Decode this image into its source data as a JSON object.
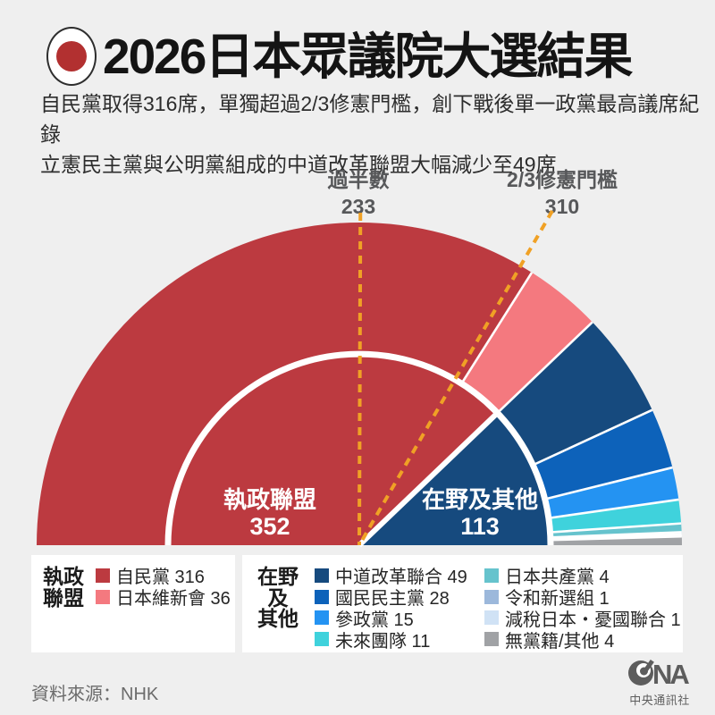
{
  "header": {
    "title": "2026日本眾議院大選結果",
    "flag_icon": "japan-flag-icon",
    "subtitle_line1": "自民黨取得316席，單獨超過2/3修憲門檻，創下戰後單一政黨最高議席紀錄",
    "subtitle_line2": "立憲民主黨與公明黨組成的中道改革聯盟大幅減少至49席"
  },
  "chart_data": {
    "type": "parliament-semicircle",
    "total_seats": 465,
    "annotations": [
      {
        "label": "過半數",
        "value": 233
      },
      {
        "label": "2/3修憲門檻",
        "value": 310
      }
    ],
    "annotation_line_color": "#F0A125",
    "coalitions": [
      {
        "name": "執政聯盟",
        "seats": 352,
        "color": "#BC3A40"
      },
      {
        "name": "在野及其他",
        "seats": 113,
        "color": "#164A7E"
      }
    ],
    "parties": [
      {
        "name": "自民黨",
        "seats": 316,
        "color": "#BC3A40",
        "coalition": "執政聯盟"
      },
      {
        "name": "日本維新會",
        "seats": 36,
        "color": "#F4797F",
        "coalition": "執政聯盟"
      },
      {
        "name": "中道改革聯合",
        "seats": 49,
        "color": "#164A7E",
        "coalition": "在野及其他"
      },
      {
        "name": "國民民主黨",
        "seats": 28,
        "color": "#0D62BA",
        "coalition": "在野及其他"
      },
      {
        "name": "參政黨",
        "seats": 15,
        "color": "#2493F2",
        "coalition": "在野及其他"
      },
      {
        "name": "未來團隊",
        "seats": 11,
        "color": "#3FD2DC",
        "coalition": "在野及其他"
      },
      {
        "name": "日本共產黨",
        "seats": 4,
        "color": "#66C3CD",
        "coalition": "在野及其他"
      },
      {
        "name": "令和新選組",
        "seats": 1,
        "color": "#9CB8DB",
        "coalition": "在野及其他"
      },
      {
        "name": "減稅日本・憂國聯合",
        "seats": 1,
        "color": "#D0E2F5",
        "coalition": "在野及其他"
      },
      {
        "name": "無黨籍/其他",
        "seats": 4,
        "color": "#A0A2A5",
        "coalition": "在野及其他"
      }
    ]
  },
  "legend": {
    "ruling": {
      "header_lines": [
        "執政",
        "聯盟"
      ],
      "party_indexes": [
        0,
        1
      ]
    },
    "opposition": {
      "header_lines": [
        "在野",
        "及",
        "其他"
      ],
      "cols": [
        [
          2,
          3,
          4,
          5
        ],
        [
          6,
          7,
          8,
          9
        ]
      ]
    }
  },
  "footer": {
    "source": "資料來源：NHK",
    "logo_icon": "cna-logo",
    "logo_text": "中央通訊社"
  },
  "colors": {
    "background": "#EFEFEF",
    "box": "#FFFFFF"
  }
}
